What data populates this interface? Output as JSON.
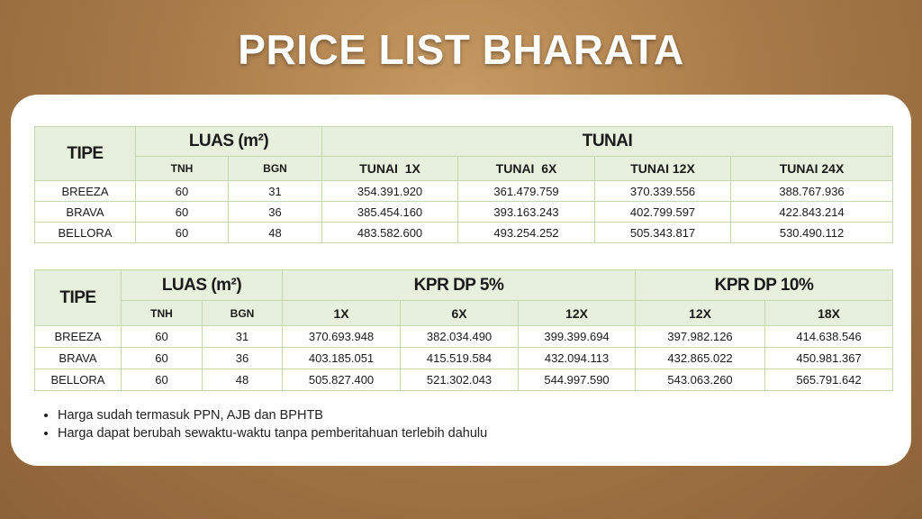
{
  "title": "PRICE LIST BHARATA",
  "table_tunai": {
    "header": {
      "tipe": "TIPE",
      "luas": "LUAS (m²)",
      "luas_cols": [
        "TNH",
        "BGN"
      ],
      "groups": [
        {
          "label": "TUNAI",
          "cols": [
            "TUNAI  1X",
            "TUNAI  6X",
            "TUNAI 12X",
            "TUNAI 24X"
          ]
        }
      ]
    },
    "rows": [
      [
        "BREEZA",
        60,
        31,
        "354.391.920",
        "361.479.759",
        "370.339.556",
        "388.767.936"
      ],
      [
        "BRAVA",
        60,
        36,
        "385.454.160",
        "393.163.243",
        "402.799.597",
        "422.843.214"
      ],
      [
        "BELLORA",
        60,
        48,
        "483.582.600",
        "493.254.252",
        "505.343.817",
        "530.490.112"
      ]
    ]
  },
  "table_kpr": {
    "header": {
      "tipe": "TIPE",
      "luas": "LUAS (m²)",
      "luas_cols": [
        "TNH",
        "BGN"
      ],
      "groups": [
        {
          "label": "KPR DP 5%",
          "cols": [
            "1X",
            "6X",
            "12X"
          ]
        },
        {
          "label": "KPR DP 10%",
          "cols": [
            "12X",
            "18X"
          ]
        }
      ]
    },
    "rows": [
      [
        "BREEZA",
        60,
        31,
        "370.693.948",
        "382.034.490",
        "399.399.694",
        "397.982.126",
        "414.638.546"
      ],
      [
        "BRAVA",
        60,
        36,
        "403.185.051",
        "415.519.584",
        "432.094.113",
        "432.865.022",
        "450.981.367"
      ],
      [
        "BELLORA",
        60,
        48,
        "505.827.400",
        "521.302.043",
        "544.997.590",
        "543.063.260",
        "565.791.642"
      ]
    ]
  },
  "notes": [
    "Harga sudah termasuk PPN, AJB dan BPHTB",
    "Harga dapat berubah sewaktu-waktu tanpa pemberitahuan terlebih dahulu"
  ]
}
